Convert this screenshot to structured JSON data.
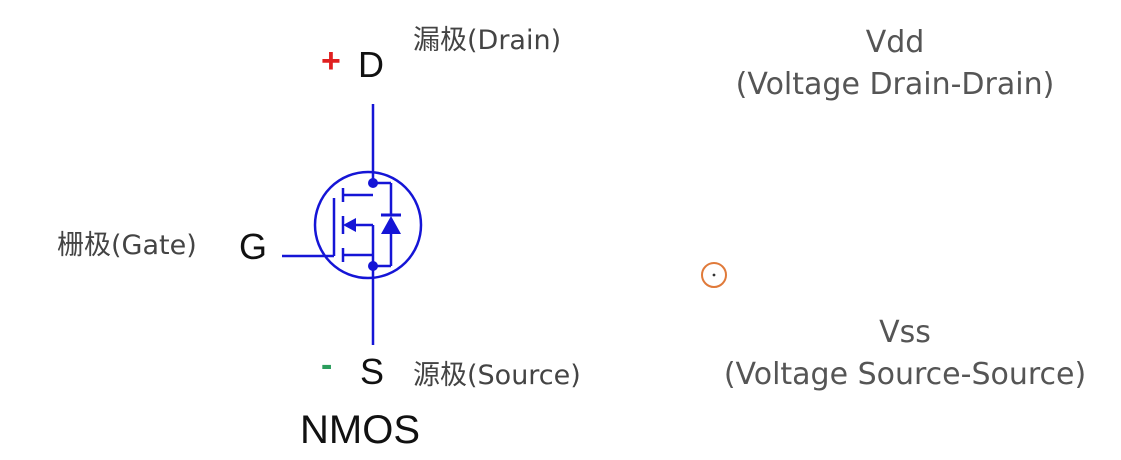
{
  "terminals": {
    "drain": {
      "symbol": "D",
      "polarity": "+",
      "polarity_color": "#e02020",
      "label": "漏极(Drain)"
    },
    "gate": {
      "symbol": "G",
      "label": "栅极(Gate)"
    },
    "source": {
      "symbol": "S",
      "polarity": "-",
      "polarity_color": "#2a9d5c",
      "label": "源极(Source)"
    }
  },
  "device_label": "NMOS",
  "supply": {
    "vdd": {
      "name": "Vdd",
      "expansion": "(Voltage Drain-Drain)"
    },
    "vss": {
      "name": "Vss",
      "expansion": "(Voltage Source-Source)"
    }
  },
  "colors": {
    "schematic": "#1515d6",
    "text": "#111111",
    "cursor": "#e07a3a"
  },
  "icons": {
    "cursor": "cursor-target-icon"
  }
}
